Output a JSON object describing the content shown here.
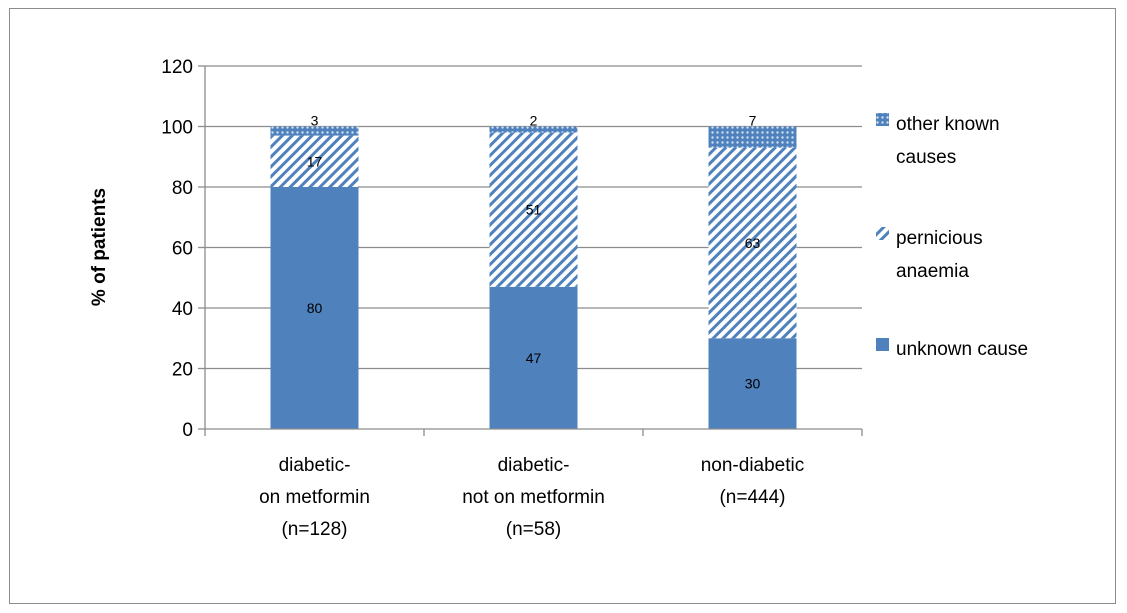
{
  "chart_data": {
    "type": "bar",
    "stacked": true,
    "title": "",
    "xlabel": "",
    "ylabel": "% of patients",
    "ylim": [
      0,
      120
    ],
    "yticks": [
      0,
      20,
      40,
      60,
      80,
      100,
      120
    ],
    "grid": true,
    "legend_position": "right",
    "categories": [
      [
        "diabetic-",
        "on metformin",
        "(n=128)"
      ],
      [
        "diabetic-",
        "not on metformin",
        "(n=58)"
      ],
      [
        "non-diabetic",
        "(n=444)"
      ]
    ],
    "series": [
      {
        "name": "unknown cause",
        "values": [
          80,
          47,
          30
        ],
        "color": "#4f81bd",
        "pattern": "solid"
      },
      {
        "name": "pernicious anaemia",
        "values": [
          17,
          51,
          63
        ],
        "color": "#4f81bd",
        "pattern": "diagonal-hatch"
      },
      {
        "name": "other known causes",
        "values": [
          3,
          2,
          7
        ],
        "color": "#4f81bd",
        "pattern": "dotted"
      }
    ],
    "legend": [
      {
        "lines": [
          "other known",
          "causes"
        ],
        "series": 2
      },
      {
        "lines": [
          "pernicious",
          "anaemia"
        ],
        "series": 1
      },
      {
        "lines": [
          "unknown cause"
        ],
        "series": 0
      }
    ],
    "colors": {
      "gridline": "#8c8c8c",
      "axis": "#8c8c8c",
      "frame": "#8c8c8c"
    }
  }
}
